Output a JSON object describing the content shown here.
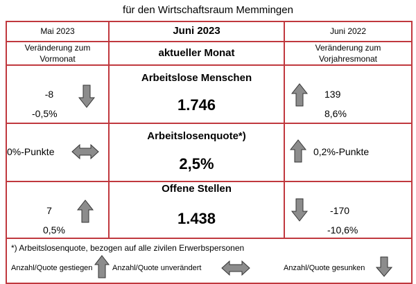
{
  "caption": "für den Wirtschaftsraum Memmingen",
  "header": {
    "left": "Mai 2023",
    "center": "Juni 2023",
    "right": "Juni 2022"
  },
  "subheader": {
    "left": "Veränderung zum Vormonat",
    "center": "aktueller Monat",
    "right": "Veränderung zum Vorjahresmonat"
  },
  "rows": [
    {
      "title": "Arbeitslose Menschen",
      "value": "1.746",
      "left_abs": "-8",
      "left_pct": "-0,5%",
      "left_icon": "arrow-down-icon",
      "right_abs": "139",
      "right_pct": "8,6%",
      "right_icon": "arrow-up-icon"
    },
    {
      "title": "Arbeitslosenquote*)",
      "value": "2,5%",
      "left_text": "0%-Punkte",
      "left_icon": "arrow-left-right-icon",
      "right_text": "0,2%-Punkte",
      "right_icon": "arrow-up-icon"
    },
    {
      "title": "Offene Stellen",
      "value": "1.438",
      "left_abs": "7",
      "left_pct": "0,5%",
      "left_icon": "arrow-up-icon",
      "right_abs": "-170",
      "right_pct": "-10,6%",
      "right_icon": "arrow-down-icon"
    }
  ],
  "footnote": "*) Arbeitslosenquote, bezogen auf alle zivilen Erwerbspersonen",
  "legend": {
    "up": "Anzahl/Quote gestiegen",
    "same": "Anzahl/Quote unverändert",
    "down": "Anzahl/Quote gesunken"
  },
  "colors": {
    "border": "#c0383e",
    "arrow_fill": "#8c8c8c"
  }
}
